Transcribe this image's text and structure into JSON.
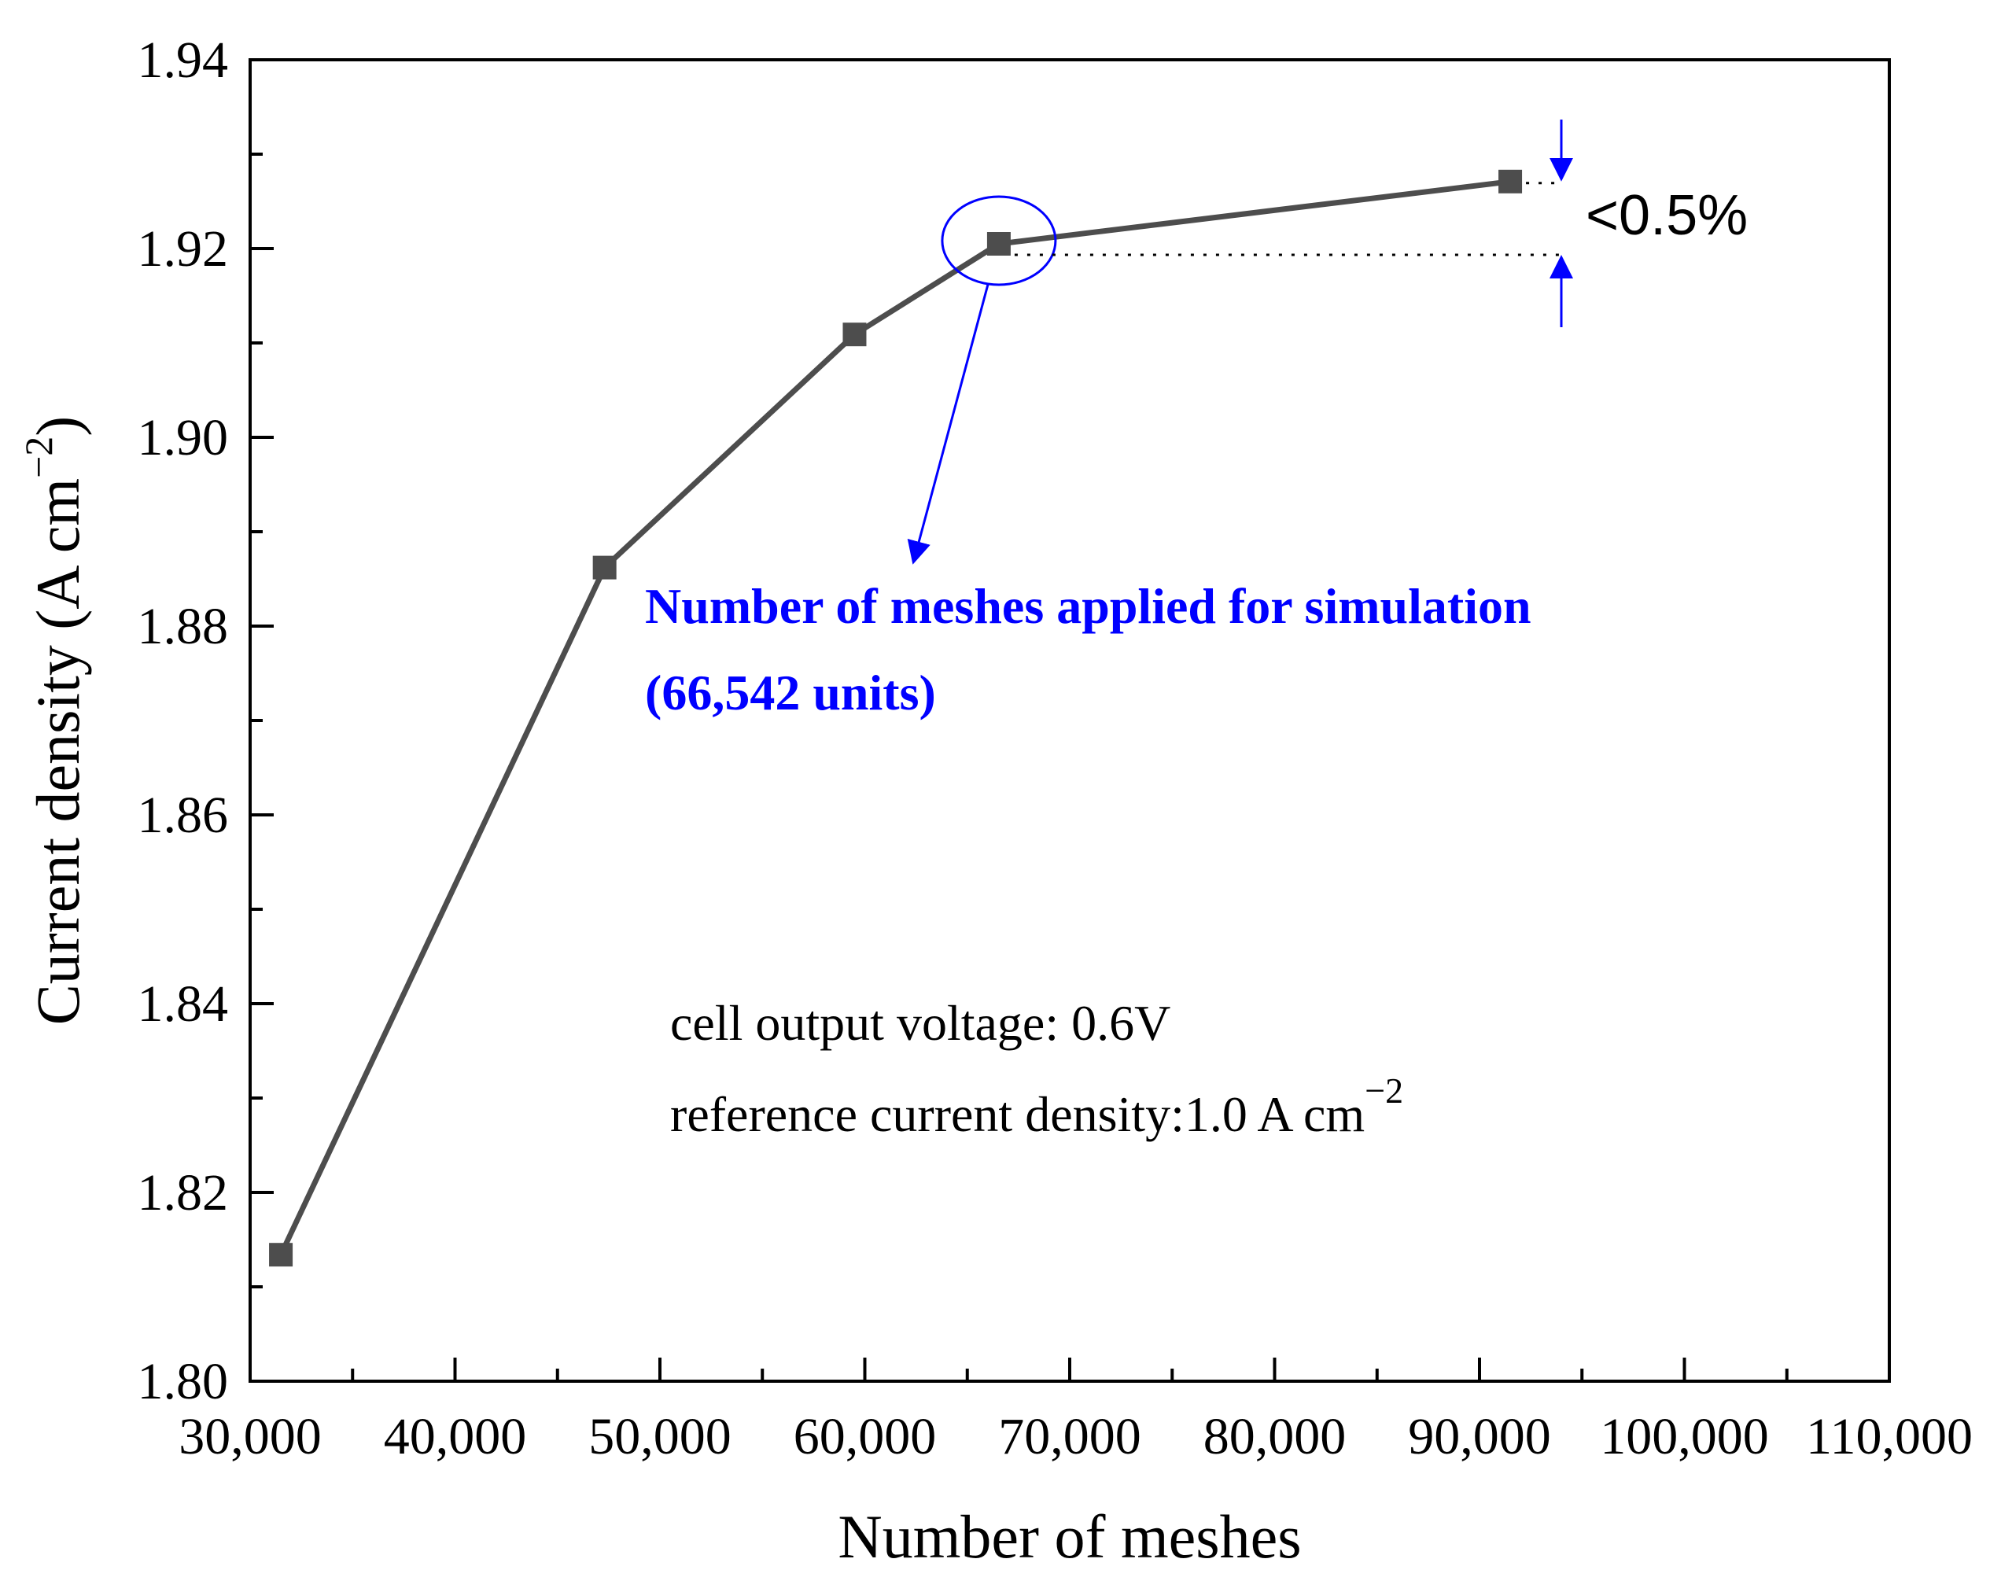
{
  "chart_data": {
    "type": "line",
    "title": "",
    "xlabel": "Number of meshes",
    "ylabel_main": "Current density (A cm",
    "ylabel_sup": "−2",
    "ylabel_end": ")",
    "xlim": [
      30000,
      110000
    ],
    "ylim": [
      1.8,
      1.94
    ],
    "x_ticks": [
      30000,
      40000,
      50000,
      60000,
      70000,
      80000,
      90000,
      100000,
      110000
    ],
    "x_tick_labels": [
      "30,000",
      "40,000",
      "50,000",
      "60,000",
      "70,000",
      "80,000",
      "90,000",
      "100,000",
      "110,000"
    ],
    "y_ticks": [
      1.8,
      1.82,
      1.84,
      1.86,
      1.88,
      1.9,
      1.92,
      1.94
    ],
    "y_tick_labels": [
      "1.80",
      "1.82",
      "1.84",
      "1.86",
      "1.88",
      "1.90",
      "1.92",
      "1.94"
    ],
    "grid": false,
    "series": [
      {
        "name": "Current density",
        "color": "#4d4d4d",
        "marker": "square",
        "x": [
          31500,
          47300,
          59500,
          66542,
          91500
        ],
        "y": [
          1.8134,
          1.8862,
          1.9109,
          1.9205,
          1.9271
        ]
      }
    ],
    "annotations": {
      "selected_label_line1": "Number  of meshes applied for simulation",
      "selected_label_line2": "(66,542 units)",
      "selected_x": 66542,
      "diff_label": "<0.5%",
      "note_line1": "cell output voltage: 0.6V",
      "note_line2_main": "reference current density:1.0 A cm",
      "note_line2_sup": "−2",
      "accent_color": "#0000ff"
    }
  }
}
